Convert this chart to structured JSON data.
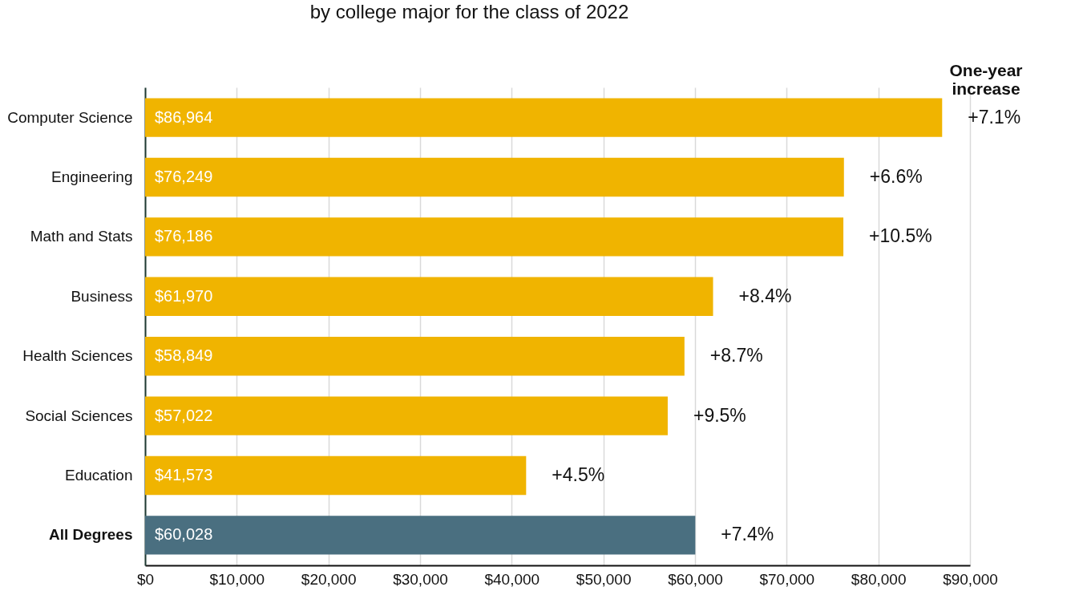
{
  "chart_data": {
    "type": "bar",
    "orientation": "horizontal",
    "title": "by college major for the class of 2022",
    "categories": [
      "Computer Science",
      "Engineering",
      "Math and Stats",
      "Business",
      "Health Sciences",
      "Social Sciences",
      "Education",
      "All Degrees"
    ],
    "values": [
      86964,
      76249,
      76186,
      61970,
      58849,
      57022,
      41573,
      60028
    ],
    "colors": [
      "#f0b400",
      "#f0b400",
      "#f0b400",
      "#f0b400",
      "#f0b400",
      "#f0b400",
      "#f0b400",
      "#4a6f80"
    ],
    "value_labels": [
      "$86,964",
      "$76,249",
      "$76,186",
      "$61,970",
      "$58,849",
      "$57,022",
      "$41,573",
      "$60,028"
    ],
    "xlim": [
      0,
      90000
    ],
    "xticks": [
      {
        "value": 0,
        "label": "$0"
      },
      {
        "value": 10000,
        "label": "$10,000"
      },
      {
        "value": 20000,
        "label": "$20,000"
      },
      {
        "value": 30000,
        "label": "$30,000"
      },
      {
        "value": 40000,
        "label": "$40,000"
      },
      {
        "value": 50000,
        "label": "$50,000"
      },
      {
        "value": 60000,
        "label": "$60,000"
      },
      {
        "value": 70000,
        "label": "$70,000"
      },
      {
        "value": 80000,
        "label": "$80,000"
      },
      {
        "value": 90000,
        "label": "$90,000"
      }
    ],
    "grid": "x",
    "annotations": [
      "One-year increase",
      {
        "text": "+7.1%",
        "x": 86964,
        "y": "Computer Science"
      },
      {
        "text": "+6.6%",
        "x": 76249,
        "y": "Engineering"
      },
      {
        "text": "+10.5%",
        "x": 76186,
        "y": "Math and Stats"
      },
      {
        "text": "+8.4%",
        "x": 61970,
        "y": "Business"
      },
      {
        "text": "+8.7%",
        "x": 58849,
        "y": "Health Sciences"
      },
      {
        "text": "+9.5%",
        "x": 57022,
        "y": "Social Sciences"
      },
      {
        "text": "+4.5%",
        "x": 41573,
        "y": "Education"
      },
      {
        "text": "+7.4%",
        "x": 60028,
        "y": "All Degrees"
      }
    ]
  }
}
